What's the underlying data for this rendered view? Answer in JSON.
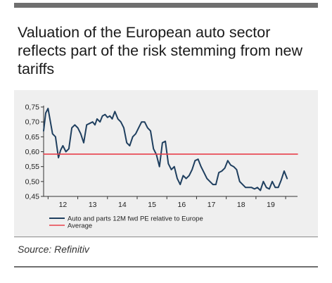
{
  "header": {
    "title": "Valuation of the European auto sector reflects part of the risk stemming from new tariffs"
  },
  "footer": {
    "source": "Source: Refinitiv"
  },
  "colors": {
    "series": "#1f3f5f",
    "average": "#e8414c",
    "panel": "#efefef"
  },
  "chart_data": {
    "type": "line",
    "title": "",
    "xlabel": "",
    "ylabel": "",
    "x_ticks": [
      "12",
      "13",
      "14",
      "15",
      "16",
      "17",
      "18",
      "19"
    ],
    "x_range": [
      11.35,
      19.9
    ],
    "y_ticks": [
      "0,45",
      "0,50",
      "0,55",
      "0,60",
      "0,65",
      "0,70",
      "0,75"
    ],
    "ylim": [
      0.45,
      0.75
    ],
    "grid": false,
    "legend_position": "bottom-left",
    "series": [
      {
        "name": "Auto and parts 12M fwd PE relative to Europe",
        "x": [
          11.35,
          11.42,
          11.5,
          11.58,
          11.65,
          11.75,
          11.85,
          11.92,
          12.0,
          12.1,
          12.2,
          12.3,
          12.4,
          12.5,
          12.6,
          12.7,
          12.8,
          12.9,
          13.0,
          13.08,
          13.15,
          13.25,
          13.33,
          13.42,
          13.5,
          13.58,
          13.66,
          13.75,
          13.85,
          13.95,
          14.05,
          14.15,
          14.25,
          14.35,
          14.45,
          14.55,
          14.65,
          14.75,
          14.85,
          14.95,
          15.05,
          15.15,
          15.25,
          15.35,
          15.45,
          15.55,
          15.65,
          15.75,
          15.85,
          15.95,
          16.05,
          16.15,
          16.25,
          16.35,
          16.45,
          16.55,
          16.65,
          16.75,
          16.85,
          16.95,
          17.05,
          17.15,
          17.25,
          17.35,
          17.45,
          17.55,
          17.65,
          17.75,
          17.85,
          17.95,
          18.05,
          18.15,
          18.25,
          18.35,
          18.45,
          18.55,
          18.65,
          18.75,
          18.85,
          18.95,
          19.05,
          19.15,
          19.25,
          19.35,
          19.45,
          19.55
        ],
        "y": [
          0.67,
          0.73,
          0.745,
          0.7,
          0.66,
          0.65,
          0.58,
          0.605,
          0.62,
          0.6,
          0.61,
          0.68,
          0.69,
          0.68,
          0.66,
          0.63,
          0.69,
          0.695,
          0.7,
          0.69,
          0.71,
          0.7,
          0.72,
          0.725,
          0.715,
          0.72,
          0.71,
          0.735,
          0.71,
          0.7,
          0.68,
          0.63,
          0.62,
          0.65,
          0.66,
          0.68,
          0.7,
          0.7,
          0.68,
          0.67,
          0.61,
          0.59,
          0.55,
          0.63,
          0.635,
          0.56,
          0.54,
          0.55,
          0.51,
          0.49,
          0.52,
          0.51,
          0.52,
          0.54,
          0.57,
          0.575,
          0.55,
          0.53,
          0.51,
          0.5,
          0.49,
          0.49,
          0.53,
          0.535,
          0.545,
          0.57,
          0.555,
          0.55,
          0.54,
          0.5,
          0.49,
          0.48,
          0.48,
          0.48,
          0.475,
          0.48,
          0.47,
          0.5,
          0.48,
          0.475,
          0.5,
          0.48,
          0.48,
          0.505,
          0.535,
          0.51
        ]
      },
      {
        "name": "Average",
        "x": [
          11.35,
          19.9
        ],
        "y": [
          0.592,
          0.592
        ]
      }
    ]
  }
}
